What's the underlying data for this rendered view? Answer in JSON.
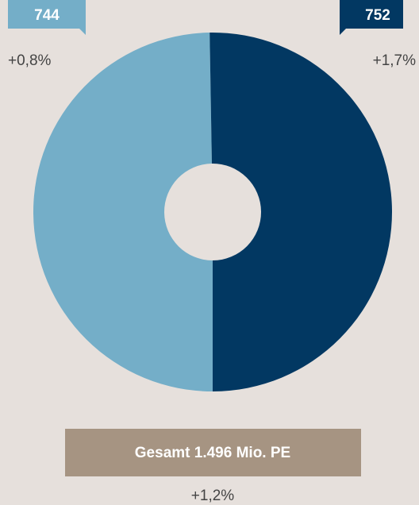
{
  "chart_data": {
    "type": "pie",
    "values": [
      744,
      752
    ],
    "colors": [
      "#74aec8",
      "#023862"
    ],
    "changes": [
      "+0,8%",
      "+1,7%"
    ],
    "total_label": "Gesamt 1.496 Mio. PE",
    "total_change": "+1,2%"
  }
}
